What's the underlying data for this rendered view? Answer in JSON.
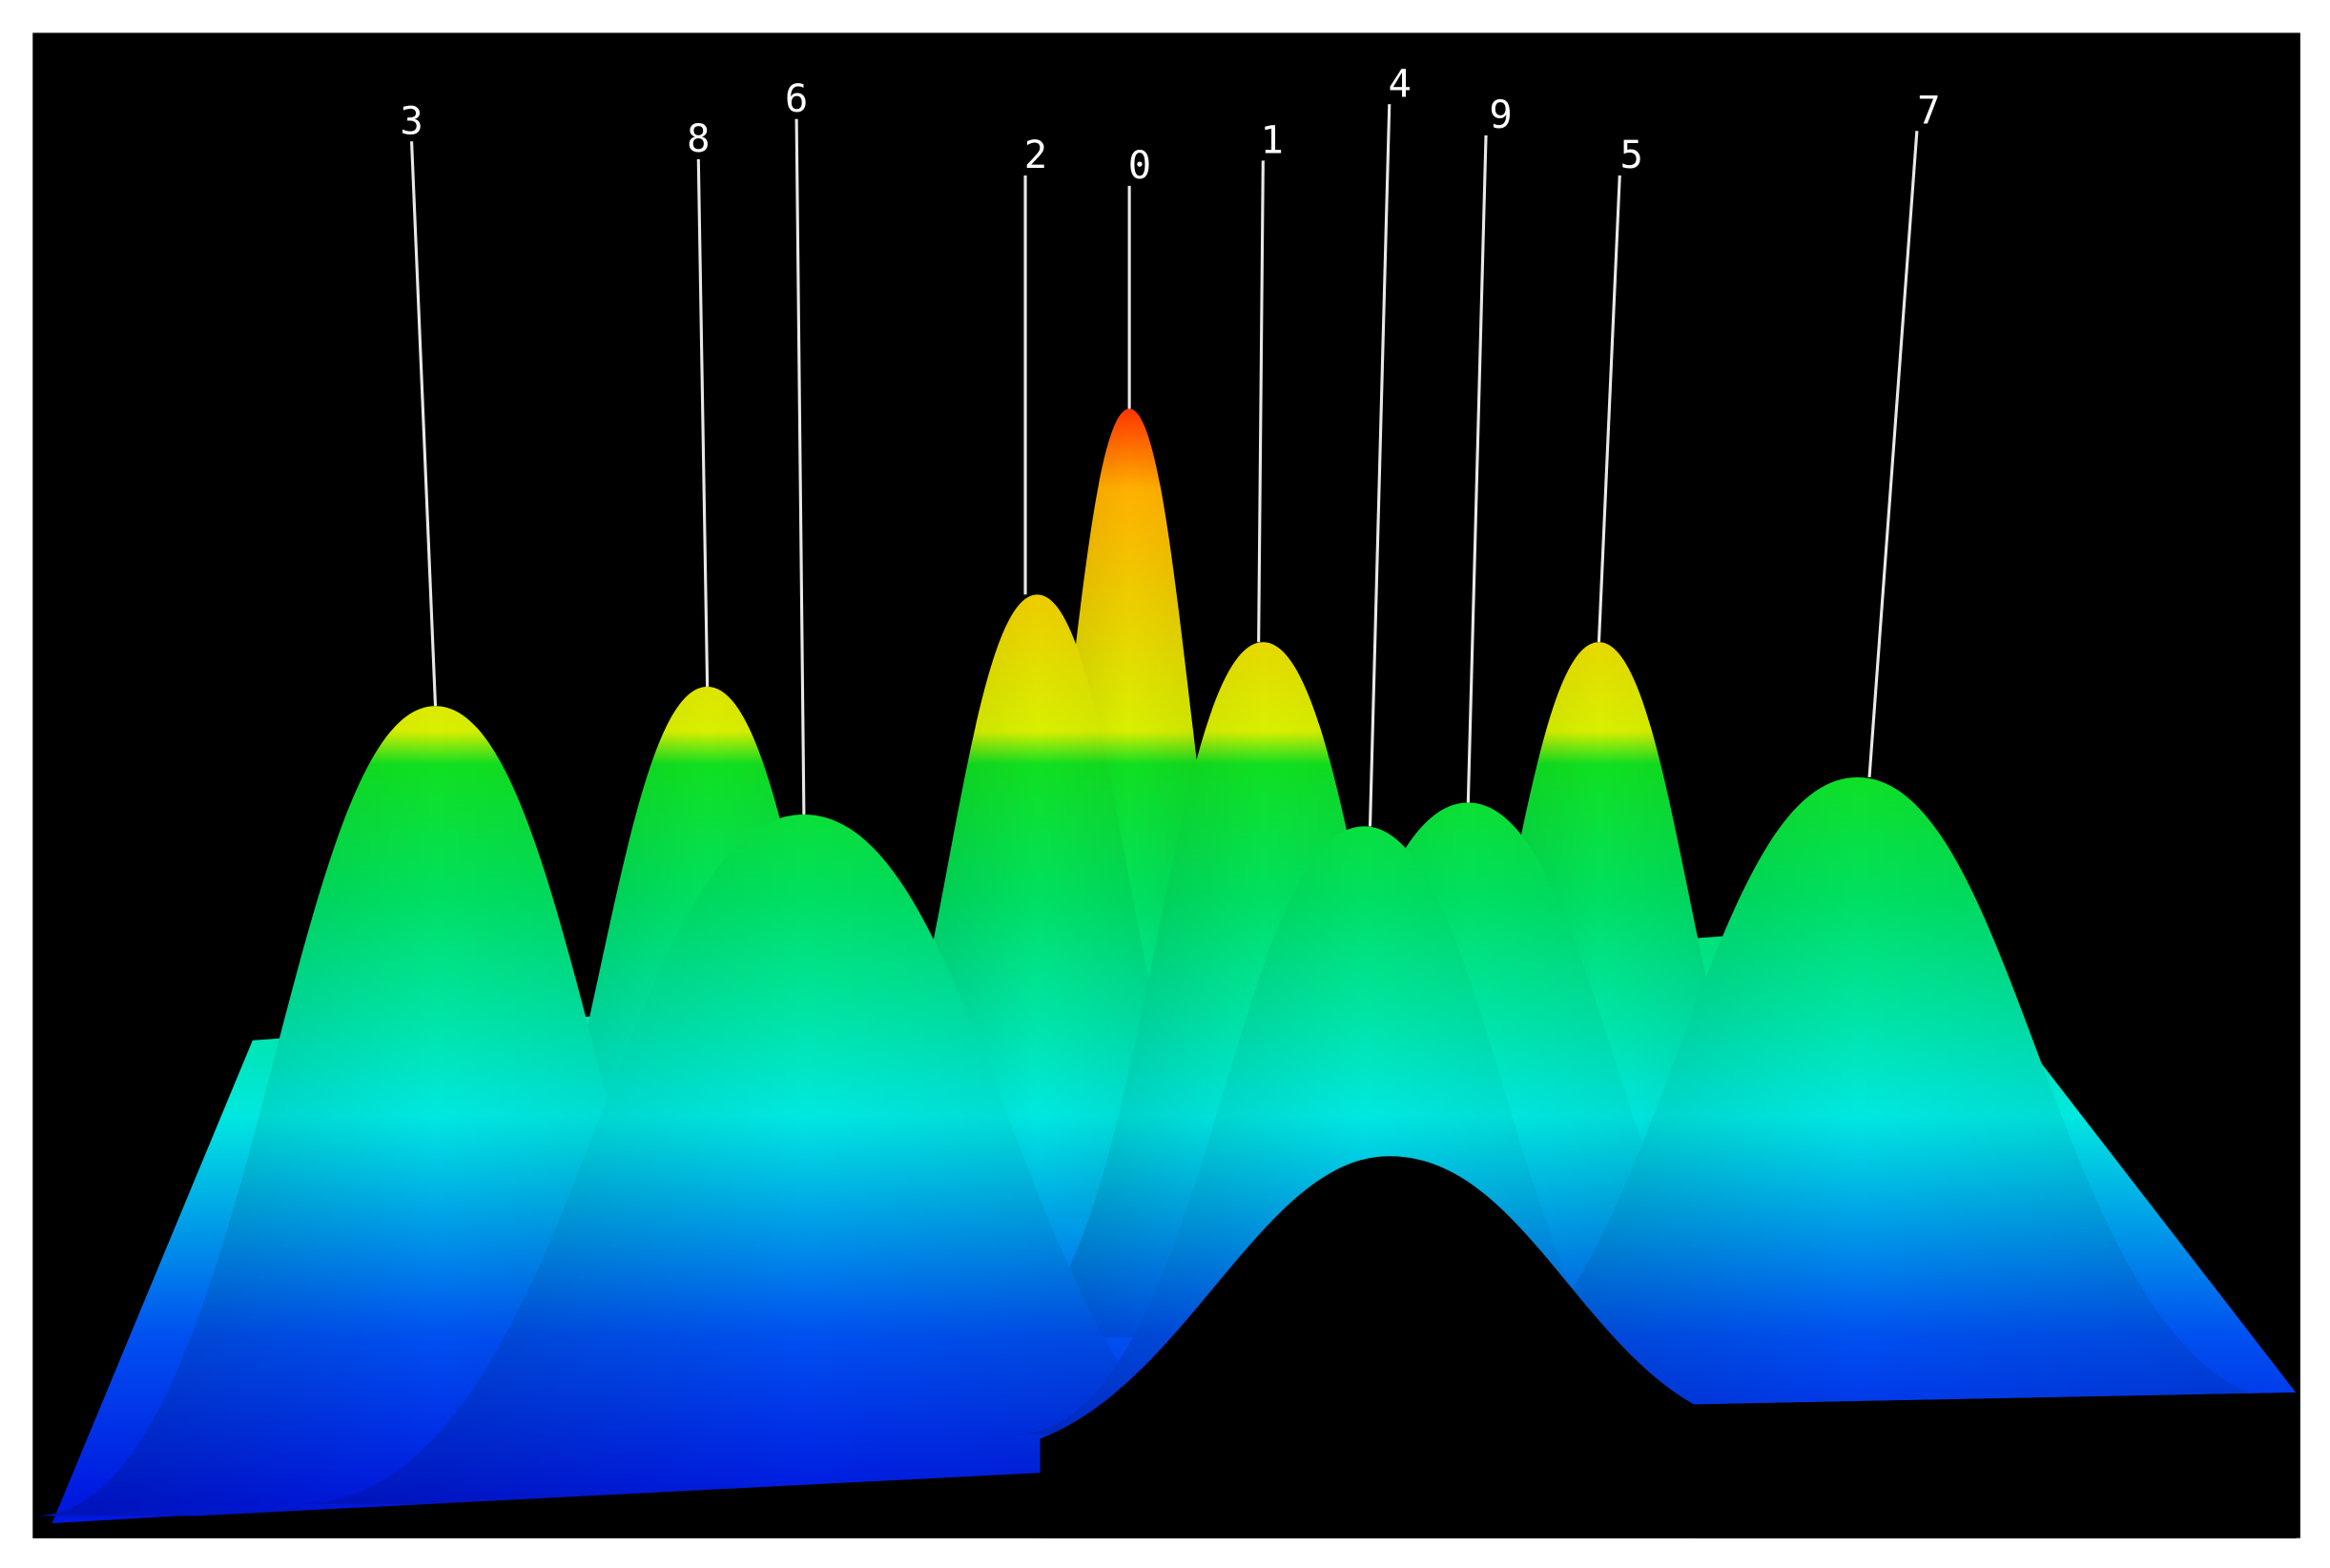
{
  "labels": [
    "3",
    "8",
    "6",
    "2",
    "0",
    "1",
    "4",
    "9",
    "5",
    "7"
  ]
}
